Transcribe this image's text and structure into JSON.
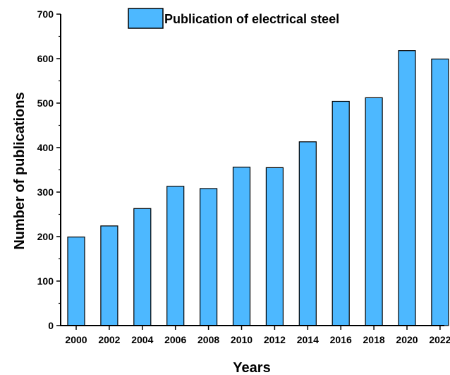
{
  "chart_data": {
    "type": "bar",
    "categories": [
      "2000",
      "2002",
      "2004",
      "2006",
      "2008",
      "2010",
      "2012",
      "2014",
      "2016",
      "2018",
      "2020",
      "2022"
    ],
    "series": [
      {
        "name": "Publication of electrical steel",
        "values": [
          199,
          224,
          263,
          313,
          308,
          356,
          355,
          413,
          504,
          512,
          618,
          599
        ]
      }
    ],
    "xlabel": "Years",
    "ylabel": "Number of publications",
    "ylim": [
      0,
      700
    ],
    "yticks": [
      0,
      100,
      200,
      300,
      400,
      500,
      600,
      700
    ],
    "grid": false,
    "legend": "top-center",
    "colors": {
      "bar_fill": "#4db8ff",
      "bar_stroke": "#000000"
    }
  }
}
